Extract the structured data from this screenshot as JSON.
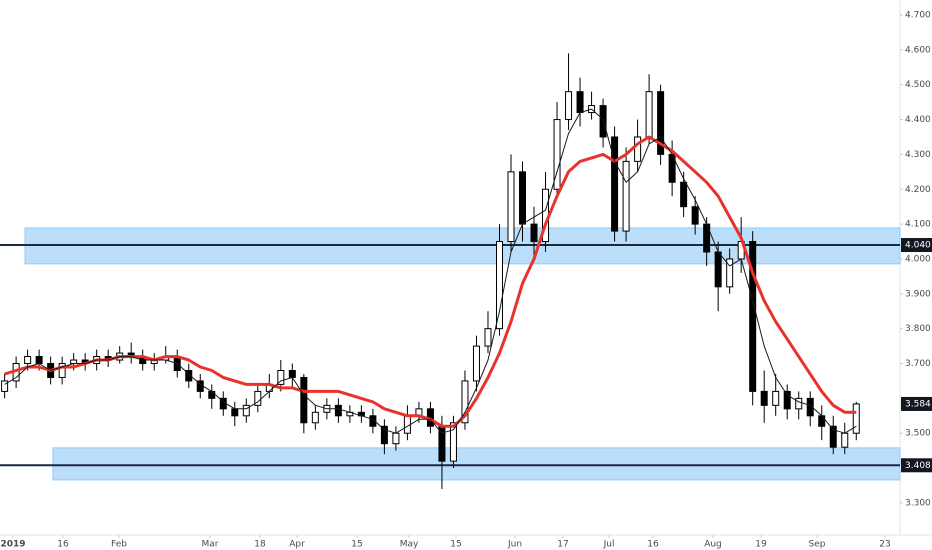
{
  "chart_data": {
    "type": "candlestick",
    "xlim": [
      -0.4,
      77.8
    ],
    "ylim": [
      3.208,
      4.743
    ],
    "xticks": [
      {
        "value": 0.73,
        "label": "2019"
      },
      {
        "value": 5.07,
        "label": "16"
      },
      {
        "value": 9.94,
        "label": "Feb"
      },
      {
        "value": 17.85,
        "label": "Mar"
      },
      {
        "value": 22.19,
        "label": "18"
      },
      {
        "value": 25.41,
        "label": "Apr"
      },
      {
        "value": 30.62,
        "label": "15"
      },
      {
        "value": 35.14,
        "label": "May"
      },
      {
        "value": 39.22,
        "label": "15"
      },
      {
        "value": 44.35,
        "label": "Jun"
      },
      {
        "value": 48.52,
        "label": "17"
      },
      {
        "value": 52.52,
        "label": "Jul"
      },
      {
        "value": 56.34,
        "label": "16"
      },
      {
        "value": 61.55,
        "label": "Aug"
      },
      {
        "value": 65.72,
        "label": "19"
      },
      {
        "value": 70.59,
        "label": "Sep"
      },
      {
        "value": 76.5,
        "label": "23"
      }
    ],
    "yticks": [
      {
        "value": 4.7,
        "label": "4.700"
      },
      {
        "value": 4.6,
        "label": "4.600"
      },
      {
        "value": 4.5,
        "label": "4.500"
      },
      {
        "value": 4.4,
        "label": "4.400"
      },
      {
        "value": 4.3,
        "label": "4.300"
      },
      {
        "value": 4.2,
        "label": "4.200"
      },
      {
        "value": 4.1,
        "label": "4.100"
      },
      {
        "value": 4.0,
        "label": "4.000"
      },
      {
        "value": 3.9,
        "label": "3.900"
      },
      {
        "value": 3.8,
        "label": "3.800"
      },
      {
        "value": 3.7,
        "label": "3.700"
      },
      {
        "value": 3.5,
        "label": "3.500"
      },
      {
        "value": 3.3,
        "label": "3.300"
      }
    ],
    "open": [
      3.62,
      3.65,
      3.7,
      3.72,
      3.7,
      3.66,
      3.7,
      3.71,
      3.7,
      3.72,
      3.71,
      3.73,
      3.72,
      3.7,
      3.71,
      3.72,
      3.68,
      3.65,
      3.62,
      3.6,
      3.57,
      3.55,
      3.58,
      3.62,
      3.64,
      3.68,
      3.66,
      3.53,
      3.56,
      3.58,
      3.55,
      3.56,
      3.55,
      3.52,
      3.47,
      3.5,
      3.55,
      3.57,
      3.52,
      3.42,
      3.53,
      3.65,
      3.75,
      3.8,
      4.05,
      4.25,
      4.1,
      4.05,
      4.2,
      4.4,
      4.48,
      4.42,
      4.44,
      4.35,
      4.08,
      4.28,
      4.35,
      4.48,
      4.3,
      4.22,
      4.15,
      4.1,
      4.02,
      3.92,
      4.0,
      4.05,
      3.62,
      3.58,
      3.62,
      3.57,
      3.6,
      3.55,
      3.52,
      3.46,
      3.5
    ],
    "high": [
      3.67,
      3.72,
      3.74,
      3.74,
      3.72,
      3.72,
      3.73,
      3.73,
      3.74,
      3.74,
      3.75,
      3.76,
      3.74,
      3.73,
      3.75,
      3.74,
      3.7,
      3.67,
      3.64,
      3.62,
      3.59,
      3.6,
      3.64,
      3.67,
      3.71,
      3.7,
      3.67,
      3.58,
      3.6,
      3.6,
      3.58,
      3.58,
      3.57,
      3.54,
      3.52,
      3.58,
      3.59,
      3.59,
      3.55,
      3.55,
      3.68,
      3.78,
      3.85,
      4.1,
      4.3,
      4.28,
      4.15,
      4.25,
      4.45,
      4.59,
      4.52,
      4.48,
      4.46,
      4.38,
      4.32,
      4.4,
      4.53,
      4.5,
      4.34,
      4.25,
      4.18,
      4.12,
      4.05,
      4.03,
      4.12,
      4.08,
      3.68,
      3.67,
      3.64,
      3.62,
      3.62,
      3.58,
      3.55,
      3.53,
      3.59
    ],
    "low": [
      3.6,
      3.63,
      3.68,
      3.68,
      3.64,
      3.64,
      3.68,
      3.68,
      3.68,
      3.69,
      3.7,
      3.7,
      3.68,
      3.68,
      3.7,
      3.66,
      3.63,
      3.6,
      3.57,
      3.55,
      3.52,
      3.53,
      3.56,
      3.6,
      3.62,
      3.63,
      3.5,
      3.51,
      3.54,
      3.53,
      3.53,
      3.53,
      3.5,
      3.44,
      3.45,
      3.48,
      3.53,
      3.5,
      3.34,
      3.4,
      3.51,
      3.62,
      3.73,
      3.78,
      4.02,
      4.05,
      4.0,
      4.02,
      4.18,
      4.37,
      4.38,
      4.4,
      4.32,
      4.05,
      4.05,
      4.25,
      4.33,
      4.27,
      4.18,
      4.12,
      4.07,
      3.98,
      3.85,
      3.9,
      3.96,
      3.58,
      3.53,
      3.55,
      3.54,
      3.54,
      3.52,
      3.48,
      3.44,
      3.44,
      3.48
    ],
    "close": [
      3.65,
      3.7,
      3.72,
      3.7,
      3.66,
      3.7,
      3.71,
      3.7,
      3.72,
      3.71,
      3.73,
      3.72,
      3.7,
      3.71,
      3.72,
      3.68,
      3.65,
      3.62,
      3.6,
      3.57,
      3.55,
      3.58,
      3.62,
      3.64,
      3.68,
      3.66,
      3.53,
      3.56,
      3.58,
      3.55,
      3.56,
      3.55,
      3.52,
      3.47,
      3.5,
      3.55,
      3.57,
      3.52,
      3.42,
      3.53,
      3.65,
      3.75,
      3.8,
      4.05,
      4.25,
      4.1,
      4.05,
      4.2,
      4.4,
      4.48,
      4.42,
      4.44,
      4.35,
      4.08,
      4.28,
      4.35,
      4.48,
      4.3,
      4.22,
      4.15,
      4.1,
      4.02,
      3.92,
      4.0,
      4.05,
      3.62,
      3.58,
      3.62,
      3.57,
      3.6,
      3.55,
      3.52,
      3.46,
      3.5,
      3.584
    ],
    "moving_averages": [
      {
        "color": "#e8322b",
        "width": 3,
        "values": [
          3.67,
          3.68,
          3.69,
          3.69,
          3.68,
          3.69,
          3.69,
          3.7,
          3.71,
          3.71,
          3.72,
          3.72,
          3.72,
          3.71,
          3.72,
          3.72,
          3.71,
          3.69,
          3.68,
          3.66,
          3.65,
          3.64,
          3.64,
          3.64,
          3.63,
          3.63,
          3.62,
          3.62,
          3.62,
          3.62,
          3.61,
          3.6,
          3.59,
          3.57,
          3.56,
          3.55,
          3.55,
          3.54,
          3.52,
          3.52,
          3.55,
          3.6,
          3.66,
          3.73,
          3.82,
          3.93,
          4.0,
          4.1,
          4.18,
          4.25,
          4.28,
          4.29,
          4.3,
          4.28,
          4.3,
          4.33,
          4.35,
          4.33,
          4.31,
          4.28,
          4.25,
          4.22,
          4.18,
          4.12,
          4.06,
          3.96,
          3.88,
          3.82,
          3.77,
          3.72,
          3.67,
          3.62,
          3.58,
          3.56,
          3.56
        ]
      },
      {
        "color": "#1a1a1a",
        "width": 1,
        "values": [
          3.64,
          3.66,
          3.69,
          3.7,
          3.68,
          3.69,
          3.7,
          3.7,
          3.71,
          3.71,
          3.72,
          3.72,
          3.71,
          3.71,
          3.71,
          3.7,
          3.67,
          3.64,
          3.62,
          3.59,
          3.57,
          3.57,
          3.59,
          3.62,
          3.65,
          3.66,
          3.61,
          3.58,
          3.57,
          3.57,
          3.56,
          3.55,
          3.54,
          3.51,
          3.5,
          3.52,
          3.54,
          3.54,
          3.5,
          3.51,
          3.56,
          3.63,
          3.71,
          3.85,
          4.02,
          4.1,
          4.12,
          4.14,
          4.25,
          4.36,
          4.42,
          4.43,
          4.4,
          4.28,
          4.22,
          4.25,
          4.33,
          4.35,
          4.3,
          4.23,
          4.17,
          4.1,
          4.02,
          3.98,
          4.0,
          3.88,
          3.75,
          3.66,
          3.61,
          3.59,
          3.58,
          3.55,
          3.51,
          3.5,
          3.52
        ]
      }
    ],
    "levels": [
      {
        "value": 4.04,
        "label": "4.040",
        "band": [
          3.986,
          4.089
        ],
        "from": 1.77
      },
      {
        "value": 3.408,
        "label": "3.408",
        "band": [
          3.366,
          3.458
        ],
        "from": 4.2
      }
    ],
    "last_price": {
      "value": 3.584,
      "label": "3.584"
    }
  }
}
